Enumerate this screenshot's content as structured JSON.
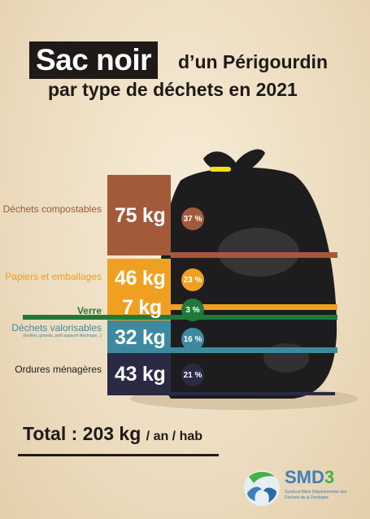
{
  "title": {
    "highlight": "Sac noir",
    "rest": "d’un Périgourdin",
    "line2": "par type de déchets en 2021"
  },
  "categories": [
    {
      "label": "Déchets compostables",
      "kg": "75 kg",
      "pct": "37 %",
      "color": "#a35a3a",
      "text_color": "#9a5a3c"
    },
    {
      "label": "Papiers et emballages",
      "kg": "46 kg",
      "pct": "23 %",
      "color": "#f0a020",
      "text_color": "#e8a020"
    },
    {
      "label": "Verre",
      "kg": "7 kg",
      "pct": "3 %",
      "color": "#1f7a3a",
      "text_color": "#1f7a3a"
    },
    {
      "label": "Déchets valorisables",
      "note": "(textiles, gravats, petit appareil électrique...)",
      "kg": "32 kg",
      "pct": "16 %",
      "color": "#3d8aa0",
      "text_color": "#3d8aa0"
    },
    {
      "label": "Ordures ménagères",
      "kg": "43 kg",
      "pct": "21 %",
      "color": "#2a2a45",
      "text_color": "#1e1a18"
    }
  ],
  "total": {
    "label": "Total : 203 kg",
    "unit": "/ an / hab"
  },
  "logo": {
    "name_a": "SMD",
    "name_b": "3",
    "subtitle": "Syndicat Mixte Départemental des Déchets de la Dordogne"
  }
}
